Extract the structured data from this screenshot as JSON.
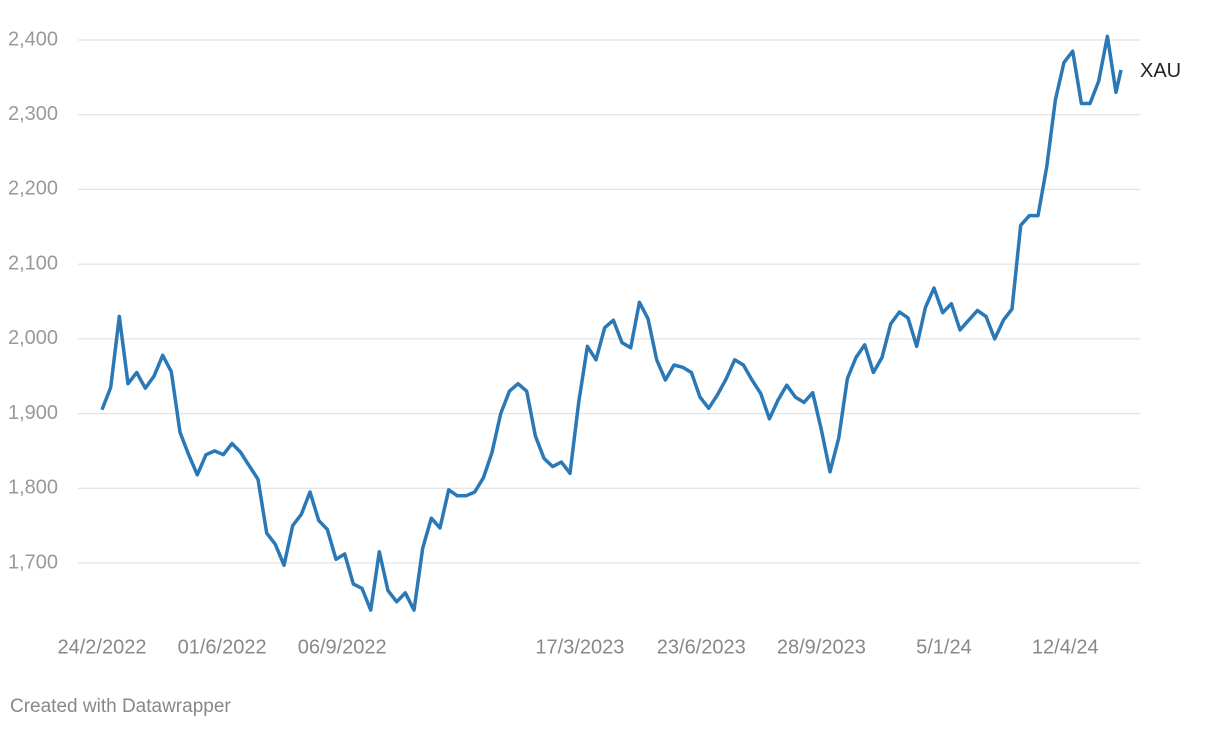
{
  "chart_data": {
    "type": "line",
    "footer": "Created with Datawrapper",
    "x": [
      "2022-02-24",
      "2022-03-03",
      "2022-03-10",
      "2022-03-17",
      "2022-03-24",
      "2022-03-31",
      "2022-04-07",
      "2022-04-14",
      "2022-04-21",
      "2022-04-28",
      "2022-05-05",
      "2022-05-12",
      "2022-05-19",
      "2022-05-26",
      "2022-06-02",
      "2022-06-09",
      "2022-06-16",
      "2022-06-23",
      "2022-06-30",
      "2022-07-07",
      "2022-07-14",
      "2022-07-21",
      "2022-07-28",
      "2022-08-04",
      "2022-08-11",
      "2022-08-18",
      "2022-08-25",
      "2022-09-01",
      "2022-09-08",
      "2022-09-15",
      "2022-09-22",
      "2022-09-29",
      "2022-10-06",
      "2022-10-13",
      "2022-10-20",
      "2022-10-27",
      "2022-11-03",
      "2022-11-10",
      "2022-11-17",
      "2022-11-24",
      "2022-12-01",
      "2022-12-08",
      "2022-12-15",
      "2022-12-22",
      "2022-12-29",
      "2023-01-05",
      "2023-01-12",
      "2023-01-19",
      "2023-01-26",
      "2023-02-02",
      "2023-02-09",
      "2023-02-16",
      "2023-02-23",
      "2023-03-02",
      "2023-03-09",
      "2023-03-16",
      "2023-03-23",
      "2023-03-30",
      "2023-04-06",
      "2023-04-13",
      "2023-04-20",
      "2023-04-27",
      "2023-05-04",
      "2023-05-11",
      "2023-05-18",
      "2023-05-25",
      "2023-06-01",
      "2023-06-08",
      "2023-06-15",
      "2023-06-22",
      "2023-06-29",
      "2023-07-06",
      "2023-07-13",
      "2023-07-20",
      "2023-07-27",
      "2023-08-03",
      "2023-08-10",
      "2023-08-17",
      "2023-08-24",
      "2023-08-31",
      "2023-09-07",
      "2023-09-14",
      "2023-09-21",
      "2023-09-28",
      "2023-10-05",
      "2023-10-12",
      "2023-10-19",
      "2023-10-26",
      "2023-11-02",
      "2023-11-09",
      "2023-11-16",
      "2023-11-23",
      "2023-11-30",
      "2023-12-07",
      "2023-12-14",
      "2023-12-21",
      "2023-12-28",
      "2024-01-04",
      "2024-01-11",
      "2024-01-18",
      "2024-01-25",
      "2024-02-01",
      "2024-02-08",
      "2024-02-15",
      "2024-02-22",
      "2024-02-29",
      "2024-03-07",
      "2024-03-14",
      "2024-03-21",
      "2024-03-28",
      "2024-04-04",
      "2024-04-11",
      "2024-04-18",
      "2024-04-25",
      "2024-05-02",
      "2024-05-09",
      "2024-05-16",
      "2024-05-23",
      "2024-05-27"
    ],
    "series": [
      {
        "name": "XAU",
        "color": "#2a78b5",
        "values": [
          1905,
          1935,
          2030,
          1940,
          1955,
          1934,
          1950,
          1978,
          1956,
          1875,
          1845,
          1818,
          1845,
          1850,
          1845,
          1860,
          1848,
          1830,
          1812,
          1740,
          1725,
          1697,
          1750,
          1765,
          1795,
          1757,
          1745,
          1705,
          1712,
          1672,
          1666,
          1637,
          1715,
          1663,
          1648,
          1660,
          1637,
          1720,
          1760,
          1747,
          1798,
          1790,
          1790,
          1795,
          1814,
          1848,
          1900,
          1930,
          1940,
          1930,
          1870,
          1840,
          1829,
          1835,
          1820,
          1915,
          1990,
          1972,
          2015,
          2025,
          1995,
          1988,
          2049,
          2027,
          1972,
          1945,
          1965,
          1962,
          1955,
          1922,
          1907,
          1925,
          1946,
          1972,
          1965,
          1945,
          1927,
          1893,
          1918,
          1938,
          1922,
          1915,
          1928,
          1878,
          1822,
          1867,
          1947,
          1975,
          1992,
          1955,
          1975,
          2020,
          2036,
          2028,
          1990,
          2042,
          2068,
          2035,
          2047,
          2012,
          2025,
          2038,
          2030,
          2000,
          2025,
          2040,
          2152,
          2165,
          2165,
          2230,
          2320,
          2370,
          2385,
          2315,
          2315,
          2345,
          2405,
          2330,
          2360
        ]
      }
    ],
    "xlim": [
      "2022-02-24",
      "2024-05-27"
    ],
    "xticks": [
      {
        "value": "2022-02-24",
        "label": "24/2/2022"
      },
      {
        "value": "2022-06-01",
        "label": "01/6/2022"
      },
      {
        "value": "2022-09-06",
        "label": "06/9/2022"
      },
      {
        "value": "2023-03-17",
        "label": "17/3/2023"
      },
      {
        "value": "2023-06-23",
        "label": "23/6/2023"
      },
      {
        "value": "2023-09-28",
        "label": "28/9/2023"
      },
      {
        "value": "2024-01-05",
        "label": "5/1/24"
      },
      {
        "value": "2024-04-12",
        "label": "12/4/24"
      }
    ],
    "ylim": [
      1615,
      2430
    ],
    "yticks": [
      {
        "value": 1700,
        "label": "1,700"
      },
      {
        "value": 1800,
        "label": "1,800"
      },
      {
        "value": 1900,
        "label": "1,900"
      },
      {
        "value": 2000,
        "label": "2,000"
      },
      {
        "value": 2100,
        "label": "2,100"
      },
      {
        "value": 2200,
        "label": "2,200"
      },
      {
        "value": 2300,
        "label": "2,300"
      },
      {
        "value": 2400,
        "label": "2,400"
      }
    ],
    "grid": true
  }
}
